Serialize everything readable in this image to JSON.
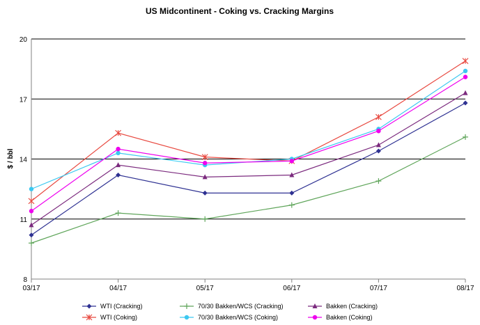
{
  "chart_data": {
    "type": "line",
    "title": "US Midcontinent - Coking vs. Cracking Margins",
    "ylabel": "$ / bbl",
    "xlabel": "",
    "x": [
      "03/17",
      "04/17",
      "05/17",
      "06/17",
      "07/17",
      "08/17"
    ],
    "ylim": [
      8,
      20
    ],
    "yticks": [
      8,
      11,
      14,
      17,
      20
    ],
    "grid": "horizontal major lines",
    "legend_position": "bottom",
    "series": [
      {
        "name": "WTI (Cracking)",
        "color": "#2E3192",
        "marker": "diamond",
        "values": [
          10.2,
          13.2,
          12.3,
          12.3,
          14.4,
          16.8
        ]
      },
      {
        "name": "70/30 Bakken/WCS (Cracking)",
        "color": "#5FA55A",
        "marker": "plus",
        "values": [
          9.8,
          11.3,
          11.0,
          11.7,
          12.9,
          15.1
        ]
      },
      {
        "name": "Bakken (Cracking)",
        "color": "#7B2A7E",
        "marker": "triangle",
        "values": [
          10.7,
          13.7,
          13.1,
          13.2,
          14.7,
          17.3
        ]
      },
      {
        "name": "WTI (Coking)",
        "color": "#E8483F",
        "marker": "star",
        "values": [
          11.9,
          15.3,
          14.1,
          13.9,
          16.1,
          18.9
        ]
      },
      {
        "name": "70/30 Bakken/WCS (Coking)",
        "color": "#3CC8F0",
        "marker": "circle",
        "values": [
          12.5,
          14.3,
          13.7,
          14.0,
          15.5,
          18.4
        ]
      },
      {
        "name": "Bakken (Coking)",
        "color": "#EE00EE",
        "marker": "circle",
        "values": [
          11.4,
          14.5,
          13.8,
          13.9,
          15.4,
          18.1
        ]
      }
    ]
  }
}
